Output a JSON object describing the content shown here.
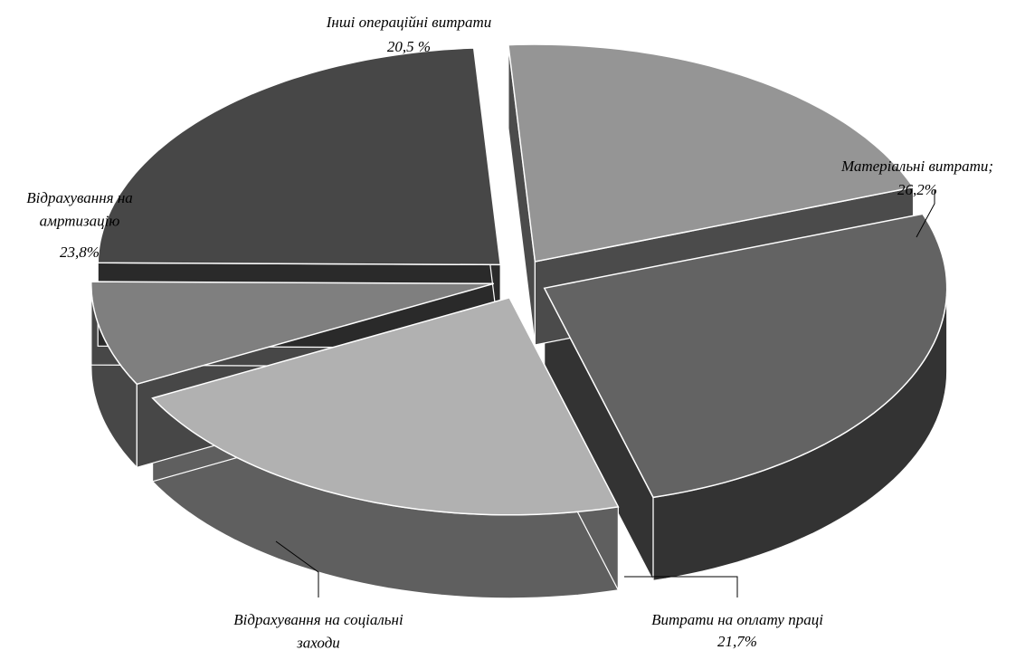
{
  "chart_data": {
    "type": "pie",
    "style": "3d-exploded",
    "title": "",
    "slices": [
      {
        "name": "Матеріальні витрати;",
        "value_label": "26,2%",
        "value": 26.2,
        "color": "#636363",
        "side_color": "#333333"
      },
      {
        "name": "Витрати на оплату праці",
        "value_label": "21,7%",
        "value": 21.7,
        "color": "#b1b1b1",
        "side_color": "#5f5f5f"
      },
      {
        "name": "Відрахування на соціальні заходи",
        "value_label": "",
        "value": 7.8,
        "color": "#7f7f7f",
        "side_color": "#474747"
      },
      {
        "name": "Відрахування на амртизацію",
        "value_label": "23,8%",
        "value": 23.8,
        "color": "#474747",
        "side_color": "#2a2a2a"
      },
      {
        "name": "Інші операційні витрати",
        "value_label": "20,5 %",
        "value": 20.5,
        "color": "#959595",
        "side_color": "#4b4b4b"
      }
    ],
    "legend": "none",
    "labels": "outside"
  }
}
